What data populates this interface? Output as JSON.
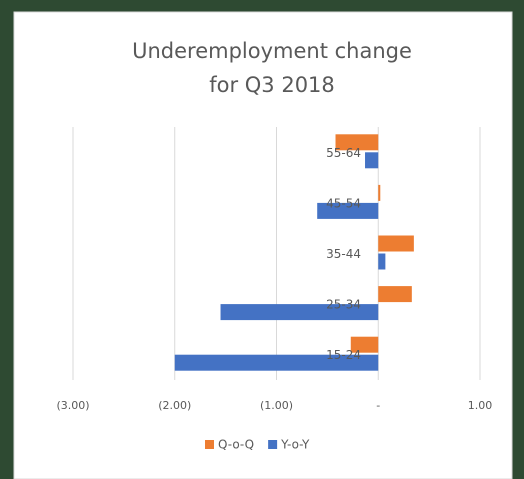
{
  "chart_data": {
    "type": "barh",
    "title": [
      "Underemployment change",
      "for Q3 2018"
    ],
    "categories": [
      "15-24",
      "25-34",
      "35-44",
      "45-54",
      "55-64"
    ],
    "series": [
      {
        "name": "Q-o-Q",
        "color": "#ed7d31",
        "values": [
          -0.27,
          0.33,
          0.35,
          0.02,
          -0.42
        ]
      },
      {
        "name": "Y-o-Y",
        "color": "#4472c4",
        "values": [
          -2.0,
          -1.55,
          0.07,
          -0.6,
          -0.13
        ]
      }
    ],
    "xlim": [
      -3,
      1
    ],
    "xticks": [
      {
        "value": -3,
        "label": "(3.00)"
      },
      {
        "value": -2,
        "label": "(2.00)"
      },
      {
        "value": -1,
        "label": "(1.00)"
      },
      {
        "value": 0,
        "label": "-"
      },
      {
        "value": 1,
        "label": "1.00"
      }
    ],
    "grid": true,
    "legend": "bottom"
  }
}
